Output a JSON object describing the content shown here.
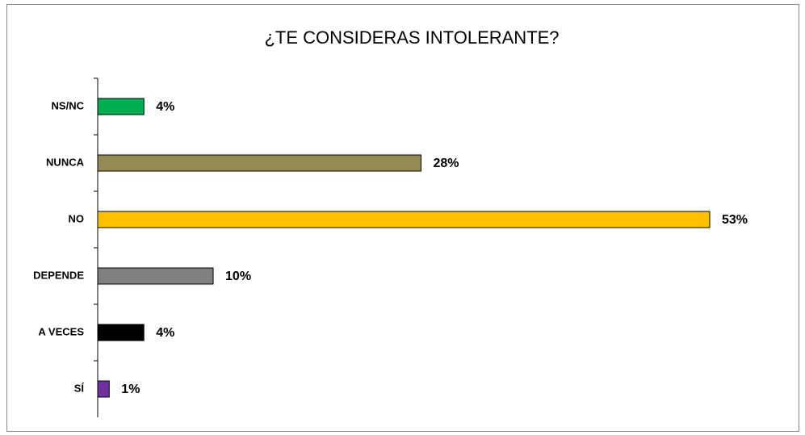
{
  "chart_data": {
    "type": "bar",
    "orientation": "horizontal",
    "title": "¿TE CONSIDERAS INTOLERANTE?",
    "categories": [
      "NS/NC",
      "NUNCA",
      "NO",
      "DEPENDE",
      "A VECES",
      "SÍ"
    ],
    "values": [
      4,
      28,
      53,
      10,
      4,
      1
    ],
    "value_labels": [
      "4%",
      "28%",
      "53%",
      "10%",
      "4%",
      "1%"
    ],
    "colors": [
      "#00b050",
      "#948a54",
      "#ffc000",
      "#808080",
      "#000000",
      "#7030a0"
    ]
  }
}
